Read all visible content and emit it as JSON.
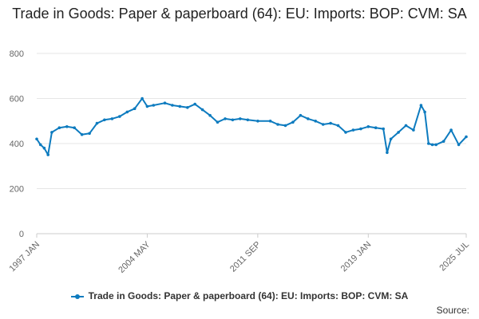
{
  "title": "Trade in Goods: Paper & paperboard (64): EU: Imports: BOP: CVM: SA",
  "source_label": "Source:",
  "series_color": "#0d7bbf",
  "chart_data": {
    "type": "line",
    "title": "Trade in Goods: Paper & paperboard (64): EU: Imports: BOP: CVM: SA",
    "xlabel": "",
    "ylabel": "",
    "ylim": [
      0,
      800
    ],
    "yticks": [
      "0",
      "200",
      "400",
      "600",
      "800"
    ],
    "xtick_labels": [
      "1997 JAN",
      "2004 MAY",
      "2011 SEP",
      "2019 JAN",
      "2025 JUL"
    ],
    "grid": "horizontal",
    "legend_position": "bottom",
    "series": [
      {
        "name": "Trade in Goods: Paper & paperboard (64): EU: Imports: BOP: CVM: SA",
        "x": [
          "1997 JAN",
          "1997 APR",
          "1997 JUL",
          "1997 OCT",
          "1998 JAN",
          "1998 JUL",
          "1999 JAN",
          "1999 JUL",
          "2000 JAN",
          "2000 JUL",
          "2001 JAN",
          "2001 JUL",
          "2002 JAN",
          "2002 JUL",
          "2003 JAN",
          "2003 JUL",
          "2004 JAN",
          "2004 MAY",
          "2004 OCT",
          "2005 JUL",
          "2006 JAN",
          "2006 JUL",
          "2007 JAN",
          "2007 JUL",
          "2008 JAN",
          "2008 JUL",
          "2009 JAN",
          "2009 JUL",
          "2010 JAN",
          "2010 JUL",
          "2011 JAN",
          "2011 SEP",
          "2012 JUL",
          "2013 JAN",
          "2013 JUL",
          "2014 JAN",
          "2014 JUL",
          "2015 JAN",
          "2015 JUL",
          "2016 JAN",
          "2016 JUL",
          "2017 JAN",
          "2017 JUL",
          "2018 JAN",
          "2018 JUL",
          "2019 JAN",
          "2019 JUL",
          "2020 JAN",
          "2020 APR",
          "2020 JUL",
          "2021 JAN",
          "2021 JUL",
          "2022 JAN",
          "2022 JUL",
          "2022 OCT",
          "2023 JAN",
          "2023 APR",
          "2023 JUL",
          "2024 JAN",
          "2024 JUL",
          "2025 JAN",
          "2025 JUL"
        ],
        "values": [
          420,
          395,
          380,
          350,
          450,
          470,
          475,
          470,
          440,
          445,
          490,
          505,
          510,
          520,
          540,
          555,
          600,
          565,
          570,
          580,
          570,
          565,
          560,
          575,
          550,
          525,
          495,
          510,
          505,
          510,
          505,
          500,
          500,
          485,
          480,
          495,
          525,
          510,
          500,
          485,
          490,
          480,
          450,
          460,
          465,
          475,
          470,
          465,
          360,
          420,
          450,
          480,
          460,
          570,
          540,
          400,
          395,
          395,
          410,
          460,
          395,
          430
        ]
      }
    ]
  }
}
